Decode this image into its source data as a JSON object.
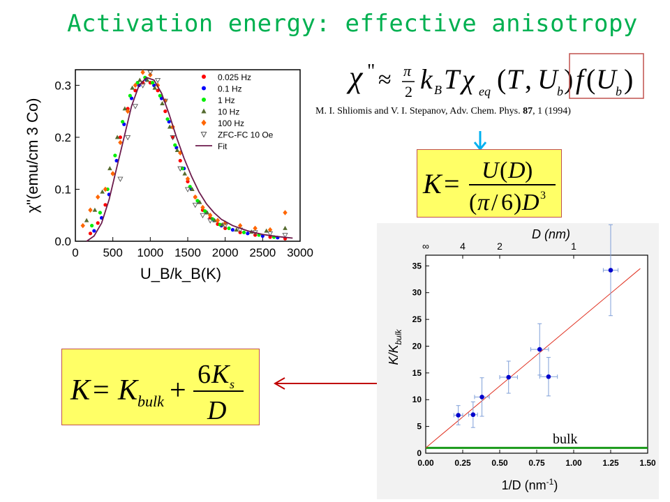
{
  "title": "Activation energy: effective anisotropy",
  "citation": {
    "authors_journal": "M. I. Shliomis and V. I. Stepanov, Adv. Chem. Phys. ",
    "volume": "87",
    "pages_year": ", 1 (1994)"
  },
  "bulk_label": "bulk",
  "colors": {
    "title": "#00b050",
    "box_fill": "#ffff66",
    "box_border": "#c0504d",
    "arrow_cyan": "#00b0f0",
    "arrow_red": "#c00000",
    "bulk_line": "#1a9a1a",
    "fit_line": "#6b1a4b",
    "kfit_line": "#e03020",
    "points_blue": "#0000cc"
  },
  "chart_data": [
    {
      "type": "scatter",
      "xlabel": "U_B/k_B(K)",
      "ylabel": "χ\"(emu/cm 3 Co)",
      "xlim": [
        0,
        3000
      ],
      "ylim": [
        0,
        0.33
      ],
      "x_ticks": [
        "0",
        "500",
        "1000",
        "1500",
        "2000",
        "2500",
        "3000"
      ],
      "y_ticks": [
        "0.0",
        "0.1",
        "0.2",
        "0.3"
      ],
      "legend_position": "top-right",
      "series": [
        {
          "name": "0.025 Hz",
          "color": "#ff0000",
          "marker": "circle",
          "points": [
            [
              200,
              0.015
            ],
            [
              300,
              0.035
            ],
            [
              400,
              0.07
            ],
            [
              500,
              0.13
            ],
            [
              600,
              0.2
            ],
            [
              700,
              0.255
            ],
            [
              800,
              0.29
            ],
            [
              900,
              0.305
            ],
            [
              1000,
              0.305
            ],
            [
              1100,
              0.29
            ],
            [
              1200,
              0.25
            ],
            [
              1300,
              0.2
            ],
            [
              1400,
              0.155
            ],
            [
              1500,
              0.115
            ],
            [
              1600,
              0.085
            ],
            [
              1700,
              0.06
            ],
            [
              1800,
              0.045
            ],
            [
              1900,
              0.033
            ],
            [
              2000,
              0.025
            ],
            [
              2200,
              0.017
            ],
            [
              2400,
              0.012
            ],
            [
              2600,
              0.008
            ],
            [
              2800,
              0.005
            ]
          ]
        },
        {
          "name": "0.1 Hz",
          "color": "#0000ff",
          "marker": "circle",
          "points": [
            [
              250,
              0.02
            ],
            [
              350,
              0.045
            ],
            [
              450,
              0.09
            ],
            [
              550,
              0.155
            ],
            [
              650,
              0.225
            ],
            [
              750,
              0.275
            ],
            [
              850,
              0.3
            ],
            [
              950,
              0.31
            ],
            [
              1050,
              0.3
            ],
            [
              1150,
              0.275
            ],
            [
              1250,
              0.23
            ],
            [
              1350,
              0.18
            ],
            [
              1450,
              0.14
            ],
            [
              1550,
              0.1
            ],
            [
              1650,
              0.075
            ],
            [
              1750,
              0.055
            ],
            [
              1850,
              0.04
            ],
            [
              1950,
              0.03
            ],
            [
              2100,
              0.022
            ],
            [
              2300,
              0.015
            ],
            [
              2500,
              0.01
            ],
            [
              2700,
              0.007
            ]
          ]
        },
        {
          "name": "1 Hz",
          "color": "#00ee00",
          "marker": "circle",
          "points": [
            [
              220,
              0.03
            ],
            [
              330,
              0.055
            ],
            [
              430,
              0.1
            ],
            [
              530,
              0.165
            ],
            [
              630,
              0.23
            ],
            [
              730,
              0.28
            ],
            [
              830,
              0.305
            ],
            [
              930,
              0.315
            ],
            [
              1030,
              0.305
            ],
            [
              1130,
              0.28
            ],
            [
              1230,
              0.235
            ],
            [
              1330,
              0.185
            ],
            [
              1430,
              0.14
            ],
            [
              1530,
              0.105
            ],
            [
              1630,
              0.078
            ],
            [
              1730,
              0.058
            ],
            [
              1830,
              0.043
            ],
            [
              1930,
              0.032
            ],
            [
              2050,
              0.025
            ],
            [
              2250,
              0.017
            ],
            [
              2450,
              0.012
            ],
            [
              2650,
              0.008
            ]
          ]
        },
        {
          "name": "10 Hz",
          "color": "#556b2f",
          "marker": "triangle",
          "points": [
            [
              150,
              0.04
            ],
            [
              260,
              0.06
            ],
            [
              360,
              0.095
            ],
            [
              460,
              0.14
            ],
            [
              560,
              0.2
            ],
            [
              660,
              0.255
            ],
            [
              760,
              0.295
            ],
            [
              860,
              0.31
            ],
            [
              960,
              0.31
            ],
            [
              1060,
              0.295
            ],
            [
              1160,
              0.265
            ],
            [
              1260,
              0.22
            ],
            [
              1360,
              0.175
            ],
            [
              1460,
              0.13
            ],
            [
              1560,
              0.1
            ],
            [
              1660,
              0.075
            ],
            [
              1760,
              0.055
            ],
            [
              1860,
              0.04
            ],
            [
              1960,
              0.032
            ],
            [
              2150,
              0.022
            ],
            [
              2350,
              0.018
            ],
            [
              2550,
              0.02
            ],
            [
              2800,
              0.025
            ]
          ]
        },
        {
          "name": "100 Hz",
          "color": "#ff6600",
          "marker": "diamond",
          "points": [
            [
              100,
              0.03
            ],
            [
              200,
              0.06
            ],
            [
              300,
              0.085
            ],
            [
              400,
              0.1
            ],
            [
              500,
              0.13
            ],
            [
              600,
              0.19
            ],
            [
              700,
              0.25
            ],
            [
              800,
              0.3
            ],
            [
              900,
              0.325
            ],
            [
              1000,
              0.32
            ],
            [
              1100,
              0.3
            ],
            [
              1200,
              0.27
            ],
            [
              1300,
              0.22
            ],
            [
              1400,
              0.17
            ],
            [
              1500,
              0.12
            ],
            [
              1600,
              0.085
            ],
            [
              1700,
              0.065
            ],
            [
              1800,
              0.05
            ],
            [
              1900,
              0.04
            ],
            [
              2000,
              0.035
            ],
            [
              2200,
              0.03
            ],
            [
              2400,
              0.025
            ],
            [
              2600,
              0.022
            ],
            [
              2800,
              0.055
            ]
          ]
        },
        {
          "name": "ZFC-FC 10 Oe",
          "color": "#555555",
          "marker": "open-triangle-down",
          "points": [
            [
              600,
              0.12
            ],
            [
              700,
              0.2
            ],
            [
              800,
              0.26
            ],
            [
              900,
              0.3
            ],
            [
              1000,
              0.325
            ],
            [
              1100,
              0.31
            ],
            [
              1200,
              0.27
            ],
            [
              1300,
              0.2
            ],
            [
              1400,
              0.14
            ],
            [
              1500,
              0.1
            ],
            [
              1600,
              0.07
            ],
            [
              1700,
              0.05
            ],
            [
              1800,
              0.04
            ],
            [
              2000,
              0.03
            ],
            [
              2200,
              0.022
            ],
            [
              2400,
              0.017
            ],
            [
              2600,
              0.015
            ],
            [
              2800,
              0.012
            ]
          ]
        },
        {
          "name": "Fit",
          "color": "#6b1a4b",
          "marker": "line",
          "points": [
            [
              150,
              0.0
            ],
            [
              250,
              0.01
            ],
            [
              350,
              0.035
            ],
            [
              450,
              0.08
            ],
            [
              550,
              0.14
            ],
            [
              650,
              0.2
            ],
            [
              750,
              0.26
            ],
            [
              850,
              0.3
            ],
            [
              950,
              0.315
            ],
            [
              1050,
              0.31
            ],
            [
              1150,
              0.285
            ],
            [
              1250,
              0.245
            ],
            [
              1350,
              0.2
            ],
            [
              1450,
              0.16
            ],
            [
              1550,
              0.125
            ],
            [
              1650,
              0.095
            ],
            [
              1750,
              0.072
            ],
            [
              1850,
              0.055
            ],
            [
              1950,
              0.042
            ],
            [
              2100,
              0.03
            ],
            [
              2300,
              0.02
            ],
            [
              2500,
              0.013
            ],
            [
              2700,
              0.009
            ],
            [
              2900,
              0.006
            ]
          ]
        }
      ]
    },
    {
      "type": "scatter",
      "xlabel": "1/D (nm",
      "xlabel_sup": "-1",
      "xlabel_end": ")",
      "ylabel": "K/K",
      "ylabel_sub": "bulk",
      "top_axis_label": "D (nm)",
      "top_ticks": [
        {
          "label": "∞",
          "x": 0.0
        },
        {
          "label": "4",
          "x": 0.25
        },
        {
          "label": "2",
          "x": 0.5
        },
        {
          "label": "1",
          "x": 1.0
        }
      ],
      "xlim": [
        0.0,
        1.5
      ],
      "ylim": [
        0,
        37
      ],
      "x_ticks": [
        "0.00",
        "0.25",
        "0.50",
        "0.75",
        "1.00",
        "1.25",
        "1.50"
      ],
      "y_ticks": [
        "0",
        "5",
        "10",
        "15",
        "20",
        "25",
        "30",
        "35"
      ],
      "points": [
        {
          "x": 0.22,
          "y": 7.1,
          "xerr": 0.03,
          "yerr": 1.8
        },
        {
          "x": 0.32,
          "y": 7.2,
          "xerr": 0.03,
          "yerr": 2.4
        },
        {
          "x": 0.38,
          "y": 10.5,
          "xerr": 0.05,
          "yerr": 3.6
        },
        {
          "x": 0.56,
          "y": 14.2,
          "xerr": 0.06,
          "yerr": 3.0
        },
        {
          "x": 0.77,
          "y": 19.4,
          "xerr": 0.06,
          "yerr": 4.8
        },
        {
          "x": 0.83,
          "y": 14.3,
          "xerr": 0.06,
          "yerr": 3.6
        },
        {
          "x": 1.25,
          "y": 34.2,
          "xerr": 0.05,
          "yerr": 8.5
        }
      ],
      "fit_line": [
        [
          0.0,
          1.0
        ],
        [
          1.45,
          34.5
        ]
      ],
      "bulk_level": 1.0
    }
  ]
}
